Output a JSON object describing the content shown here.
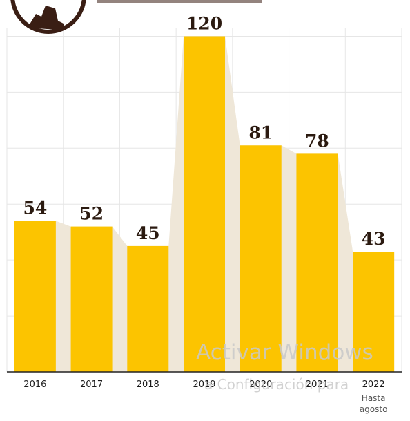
{
  "chart_data": {
    "type": "bar",
    "categories": [
      "2016",
      "2017",
      "2018",
      "2019",
      "2020",
      "2021",
      "2022"
    ],
    "values": [
      54,
      52,
      45,
      120,
      81,
      78,
      43
    ],
    "category_notes": [
      "",
      "",
      "",
      "",
      "",
      "",
      "Hasta agosto"
    ],
    "value_labels": [
      "54",
      "52",
      "45",
      "120",
      "81",
      "78",
      "43"
    ],
    "ylim": [
      0,
      130
    ],
    "grid": true,
    "colors": {
      "bar": "#fcc400",
      "area": "#efe7d8",
      "grid": "#e6e6e6",
      "axis": "#222222",
      "icon": "#3a1e14"
    }
  },
  "watermark": {
    "line1": "Activar Windows",
    "line2": "a Configuración para"
  },
  "logo_icon": "silhouette-logo-icon"
}
